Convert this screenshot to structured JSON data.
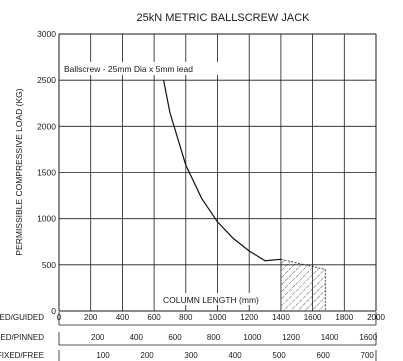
{
  "chart_data": {
    "type": "line",
    "title": "25kN METRIC BALLSCREW JACK",
    "ylabel": "PERMISSIBLE COMPRESSIVE LOAD (KG)",
    "xlabel": "COLUMN LENGTH (mm)",
    "annotation": "Ballscrew - 25mm Dia x 5mm lead",
    "ylim": [
      0,
      3000
    ],
    "yticks": [
      0,
      500,
      1000,
      1500,
      2000,
      2500,
      3000
    ],
    "xlim": [
      0,
      2000
    ],
    "grid": true,
    "x_scales": [
      {
        "label": "FIXED/GUIDED",
        "ticks": [
          "0",
          "200",
          "400",
          "600",
          "800",
          "1000",
          "1200",
          "1400",
          "1600",
          "1800",
          "2000"
        ]
      },
      {
        "label": "FIXED/PINNED",
        "ticks": [
          "200",
          "400",
          "600",
          "800",
          "1000",
          "1200",
          "1400",
          "1600"
        ]
      },
      {
        "label": "FIXED/FREE",
        "ticks": [
          "100",
          "200",
          "300",
          "400",
          "500",
          "600",
          "700"
        ]
      }
    ],
    "series": [
      {
        "x": [
          660,
          700,
          800,
          900,
          1000,
          1100,
          1200,
          1300,
          1400
        ],
        "y": [
          2500,
          2150,
          1580,
          1220,
          965,
          785,
          650,
          545,
          560
        ]
      }
    ],
    "hatched_region": {
      "x": [
        1400,
        1680
      ],
      "y_top": [
        560,
        450
      ],
      "y_bottom": 0
    }
  }
}
